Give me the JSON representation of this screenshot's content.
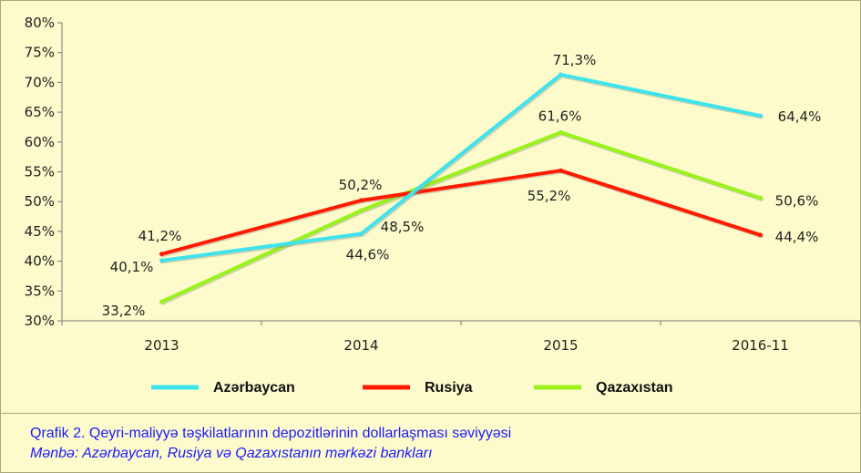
{
  "chart_data": {
    "type": "line",
    "title": "",
    "xlabel": "",
    "ylabel": "",
    "categories": [
      "2013",
      "2014",
      "2015",
      "2016-11"
    ],
    "ylim": [
      30,
      80
    ],
    "yticks": [
      "30%",
      "35%",
      "40%",
      "45%",
      "50%",
      "55%",
      "60%",
      "65%",
      "70%",
      "75%",
      "80%"
    ],
    "ytick_values": [
      30,
      35,
      40,
      45,
      50,
      55,
      60,
      65,
      70,
      75,
      80
    ],
    "grid": false,
    "legend_position": "bottom",
    "series": [
      {
        "name": "Azərbaycan",
        "color": "#3fe3ec",
        "values": [
          40.1,
          44.6,
          71.3,
          64.4
        ],
        "labels": [
          "40,1%",
          "44,6%",
          "71,3%",
          "64,4%"
        ]
      },
      {
        "name": "Rusiya",
        "color": "#ff1a00",
        "values": [
          41.2,
          50.2,
          55.2,
          44.4
        ],
        "labels": [
          "41,2%",
          "50,2%",
          "55,2%",
          "44,4%"
        ]
      },
      {
        "name": "Qazaxıstan",
        "color": "#99f21a",
        "values": [
          33.2,
          48.5,
          61.6,
          50.6
        ],
        "labels": [
          "33,2%",
          "48,5%",
          "61,6%",
          "50,6%"
        ]
      }
    ]
  },
  "caption": {
    "title": "Qrafik 2. Qeyri-maliyyə təşkilatlarının depozitlərinin dollarlaşması səviyyəsi",
    "source": "Mənbə: Azərbaycan, Rusiya və Qazaxıstanın mərkəzi bankları"
  }
}
